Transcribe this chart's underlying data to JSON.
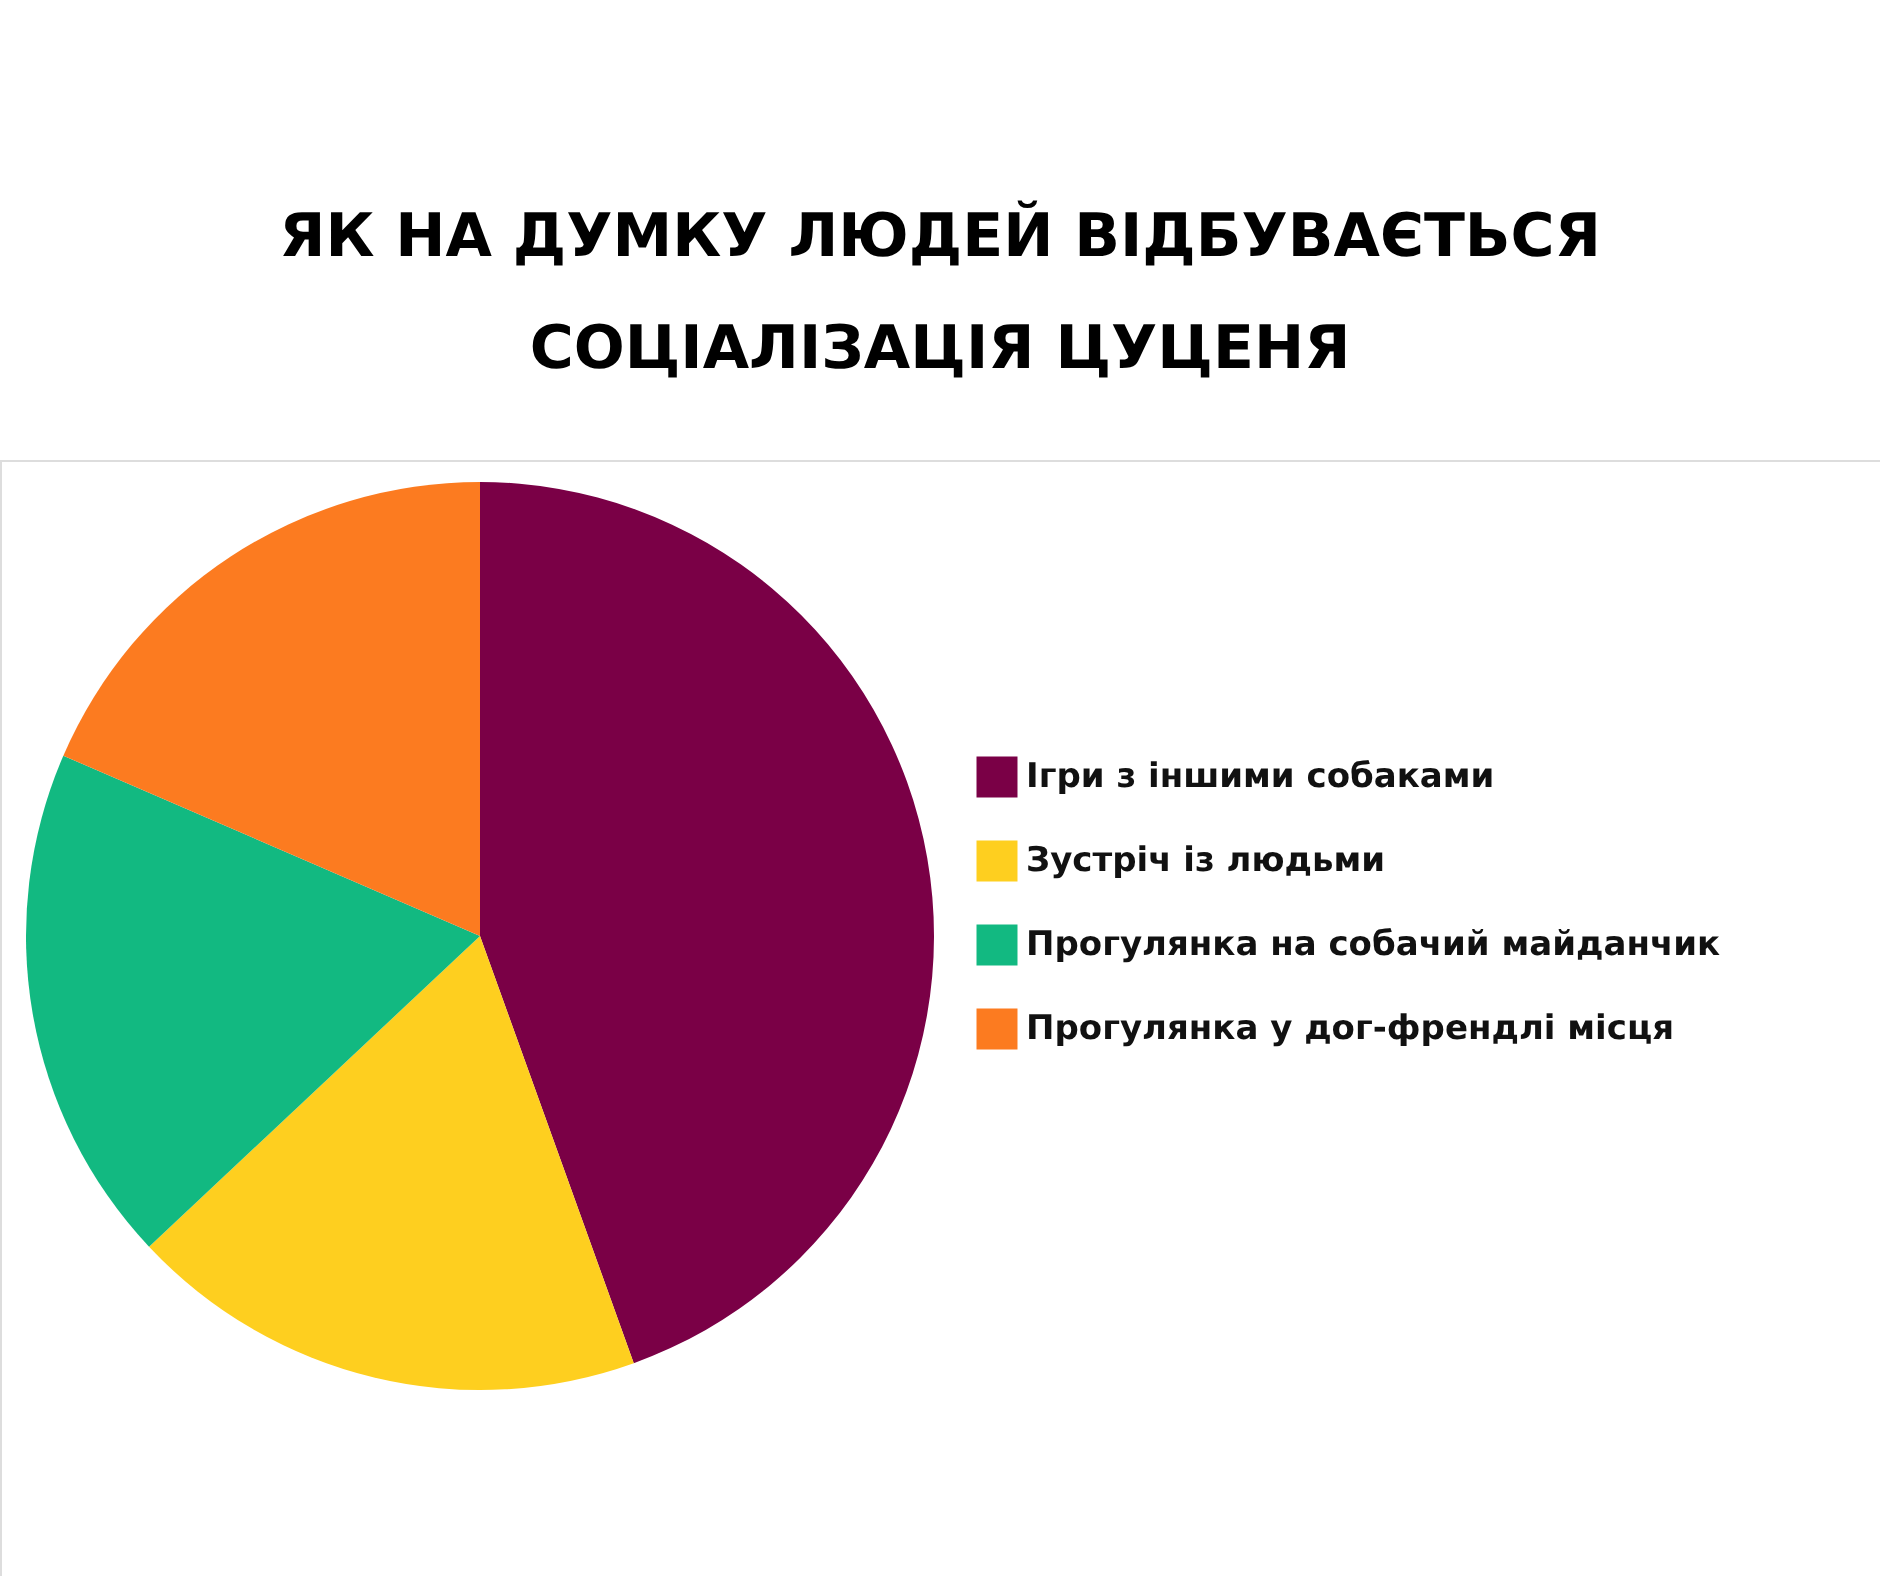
{
  "chart_data": {
    "type": "pie",
    "title": "ЯК НА ДУМКУ ЛЮДЕЙ ВІДБУВАЄТЬСЯ СОЦІАЛІЗАЦІЯ ЦУЦЕНЯ",
    "categories": [
      "Ігри з іншими собаками",
      "Зустріч із людьми",
      "Прогулянка на собачий майданчик",
      "Прогулянка у дог-френдлі місця"
    ],
    "values": [
      44.5,
      18.5,
      18.5,
      18.5
    ],
    "colors": [
      "#7a0046",
      "#fecf1f",
      "#12b981",
      "#fc7b20"
    ],
    "legend": "right"
  }
}
